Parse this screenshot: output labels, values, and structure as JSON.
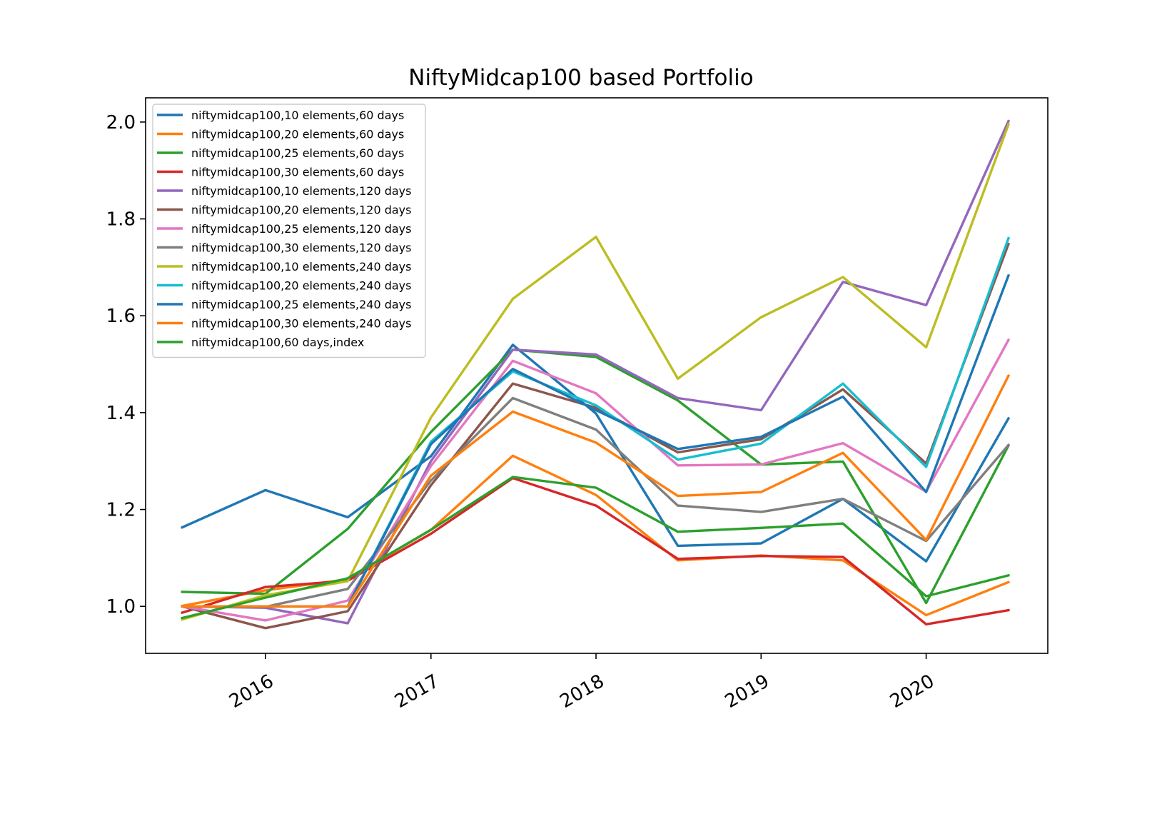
{
  "chart_data": {
    "type": "line",
    "title": "NiftyMidcap100 based Portfolio",
    "xlabel": "",
    "ylabel": "",
    "x": [
      "2015-07-01",
      "2016-01-01",
      "2016-07-01",
      "2017-01-01",
      "2017-07-01",
      "2018-01-01",
      "2018-07-01",
      "2019-01-01",
      "2019-07-01",
      "2020-01-01",
      "2020-07-01"
    ],
    "xlim": [
      "2015-04-11",
      "2020-09-26"
    ],
    "ylim": [
      0.903,
      2.05
    ],
    "x_ticks": [
      {
        "date": "2016-01-01",
        "label": "2016"
      },
      {
        "date": "2017-01-01",
        "label": "2017"
      },
      {
        "date": "2018-01-01",
        "label": "2018"
      },
      {
        "date": "2019-01-01",
        "label": "2019"
      },
      {
        "date": "2020-01-01",
        "label": "2020"
      }
    ],
    "y_ticks": [
      {
        "value": 1.0,
        "label": "1.0"
      },
      {
        "value": 1.2,
        "label": "1.2"
      },
      {
        "value": 1.4,
        "label": "1.4"
      },
      {
        "value": 1.6,
        "label": "1.6"
      },
      {
        "value": 1.8,
        "label": "1.8"
      },
      {
        "value": 2.0,
        "label": "2.0"
      }
    ],
    "grid": false,
    "legend_position": "upper-left",
    "series": [
      {
        "name": "niftymidcap100,10 elements,60 days",
        "color": "#1f77b4",
        "values": [
          1.163,
          1.24,
          1.184,
          1.31,
          1.54,
          1.398,
          1.125,
          1.13,
          1.222,
          1.093,
          1.388
        ]
      },
      {
        "name": "niftymidcap100,20 elements,60 days",
        "color": "#ff7f0e",
        "values": [
          1.001,
          1.033,
          1.056,
          1.158,
          1.311,
          1.23,
          1.095,
          1.105,
          1.095,
          0.982,
          1.05
        ]
      },
      {
        "name": "niftymidcap100,25 elements,60 days",
        "color": "#2ca02c",
        "values": [
          1.03,
          1.026,
          1.16,
          1.36,
          1.53,
          1.515,
          1.425,
          1.293,
          1.299,
          1.007,
          1.332
        ]
      },
      {
        "name": "niftymidcap100,30 elements,60 days",
        "color": "#d62728",
        "values": [
          0.987,
          1.04,
          1.053,
          1.15,
          1.265,
          1.208,
          1.098,
          1.104,
          1.102,
          0.963,
          0.992
        ]
      },
      {
        "name": "niftymidcap100,10 elements,120 days",
        "color": "#9467bd",
        "values": [
          1.0,
          0.997,
          0.965,
          1.3,
          1.53,
          1.52,
          1.43,
          1.405,
          1.67,
          1.622,
          2.002
        ]
      },
      {
        "name": "niftymidcap100,20 elements,120 days",
        "color": "#8c564b",
        "values": [
          1.0,
          0.955,
          0.99,
          1.25,
          1.46,
          1.41,
          1.318,
          1.345,
          1.448,
          1.295,
          1.748
        ]
      },
      {
        "name": "niftymidcap100,25 elements,120 days",
        "color": "#e377c2",
        "values": [
          1.0,
          0.971,
          1.012,
          1.29,
          1.507,
          1.44,
          1.291,
          1.293,
          1.337,
          1.237,
          1.55
        ]
      },
      {
        "name": "niftymidcap100,30 elements,120 days",
        "color": "#7f7f7f",
        "values": [
          1.0,
          0.999,
          1.036,
          1.26,
          1.43,
          1.365,
          1.208,
          1.195,
          1.222,
          1.135,
          1.333
        ]
      },
      {
        "name": "niftymidcap100,10 elements,240 days",
        "color": "#bcbd22",
        "values": [
          0.973,
          1.023,
          1.052,
          1.39,
          1.635,
          1.763,
          1.47,
          1.597,
          1.68,
          1.535,
          1.995
        ]
      },
      {
        "name": "niftymidcap100,20 elements,240 days",
        "color": "#17becf",
        "values": [
          1.0,
          1.0,
          1.0,
          1.34,
          1.485,
          1.415,
          1.303,
          1.336,
          1.46,
          1.288,
          1.76
        ]
      },
      {
        "name": "niftymidcap100,25 elements,240 days",
        "color": "#1f77b4",
        "values": [
          1.0,
          1.0,
          1.0,
          1.335,
          1.49,
          1.405,
          1.325,
          1.35,
          1.433,
          1.236,
          1.683
        ]
      },
      {
        "name": "niftymidcap100,30 elements,240 days",
        "color": "#ff7f0e",
        "values": [
          1.0,
          1.0,
          1.0,
          1.27,
          1.402,
          1.338,
          1.228,
          1.236,
          1.317,
          1.137,
          1.476
        ]
      },
      {
        "name": "niftymidcap100,60 days,index",
        "color": "#2ca02c",
        "values": [
          0.976,
          1.018,
          1.058,
          1.158,
          1.267,
          1.245,
          1.154,
          1.162,
          1.171,
          1.021,
          1.064
        ]
      }
    ]
  }
}
